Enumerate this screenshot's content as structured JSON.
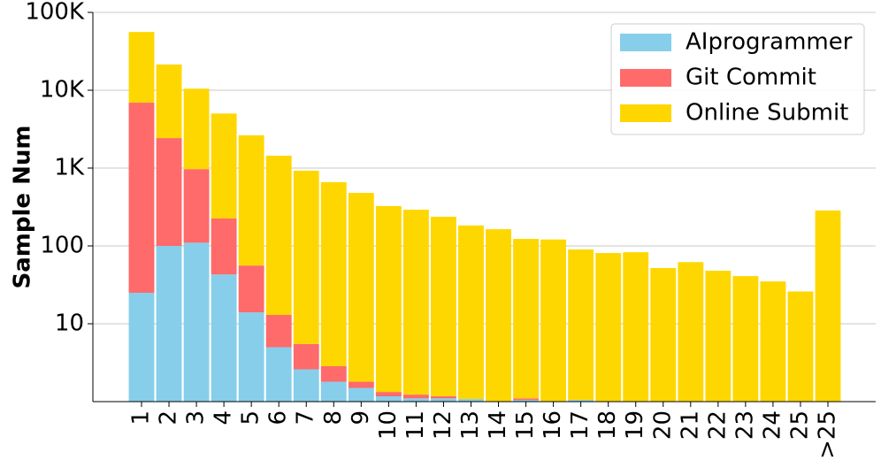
{
  "chart_data": {
    "type": "stacked-bar",
    "y_label": "Sample Num",
    "categories": [
      "1",
      "2",
      "3",
      "4",
      "5",
      "6",
      "7",
      "8",
      "9",
      "10",
      "11",
      "12",
      "13",
      "14",
      "15",
      "16",
      "17",
      "18",
      "19",
      "20",
      "21",
      "22",
      "23",
      "24",
      "25",
      ">25"
    ],
    "series": [
      {
        "name": "AIprogrammer",
        "color": "#87ceeb",
        "values": [
          25,
          100,
          110,
          43,
          14,
          5,
          2.6,
          1.8,
          1.5,
          1.17,
          1.1,
          1.1,
          1.08,
          0,
          1.05,
          0,
          1.05,
          0,
          0,
          0,
          0,
          0,
          0,
          0,
          0,
          0
        ]
      },
      {
        "name": "Git Commit",
        "color": "#ff6a6a",
        "values": [
          6900,
          2330,
          860,
          182,
          42,
          8,
          2.9,
          1.05,
          0.3,
          0.16,
          0.13,
          0.07,
          0,
          0,
          0.05,
          0,
          0,
          0,
          0,
          0,
          0,
          0,
          0,
          0,
          0,
          0
        ]
      },
      {
        "name": "Online Submit",
        "color": "#ffd700",
        "values": [
          49100,
          19000,
          9500,
          4800,
          2580,
          1430,
          920,
          657,
          478,
          324,
          291,
          236,
          182,
          164,
          122,
          121,
          89,
          81,
          83,
          52,
          62,
          48,
          41,
          35,
          26,
          285
        ]
      }
    ],
    "log_scale": true,
    "ylim": [
      1,
      100000
    ],
    "yticks": [
      10,
      100,
      {
        "value": 1000,
        "label": "1K"
      },
      {
        "value": 10000,
        "label": "10K"
      },
      {
        "value": 100000,
        "label": "100K"
      }
    ],
    "grid": true,
    "legend": "upper right"
  }
}
